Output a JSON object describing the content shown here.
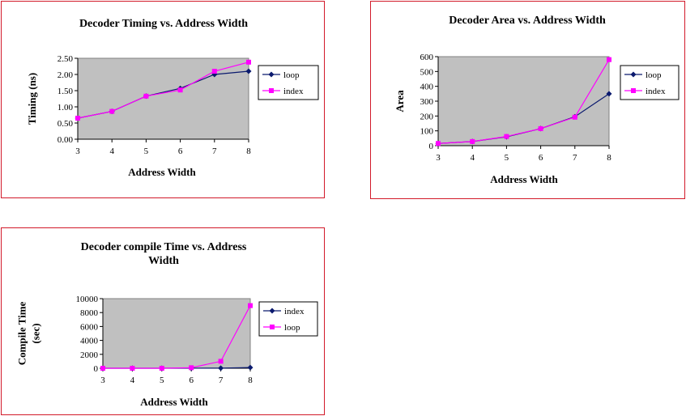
{
  "chart_data": [
    {
      "type": "line",
      "title_lines": [
        "Decoder Timing vs. Address Width"
      ],
      "xlabel": "Address Width",
      "ylabel_lines": [
        "Timing (ns)"
      ],
      "x": [
        3,
        4,
        5,
        6,
        7,
        8
      ],
      "ylim": [
        0,
        2.5
      ],
      "yticks": [
        "0.00",
        "0.50",
        "1.00",
        "1.50",
        "2.00",
        "2.50"
      ],
      "grid": false,
      "legend_position": "right",
      "series": [
        {
          "name": "loop",
          "color": "#0b1a6e",
          "marker": "diamond",
          "values": [
            0.65,
            0.86,
            1.33,
            1.57,
            2.0,
            2.1
          ]
        },
        {
          "name": "index",
          "color": "#ff00ff",
          "marker": "square",
          "values": [
            0.65,
            0.86,
            1.33,
            1.52,
            2.1,
            2.38
          ]
        }
      ]
    },
    {
      "type": "line",
      "title_lines": [
        "Decoder Area vs. Address Width"
      ],
      "xlabel": "Address Width",
      "ylabel_lines": [
        "Area"
      ],
      "x": [
        3,
        4,
        5,
        6,
        7,
        8
      ],
      "ylim": [
        0,
        600
      ],
      "yticks": [
        "0",
        "100",
        "200",
        "300",
        "400",
        "500",
        "600"
      ],
      "grid": false,
      "legend_position": "right",
      "series": [
        {
          "name": "loop",
          "color": "#0b1a6e",
          "marker": "diamond",
          "values": [
            15,
            28,
            60,
            115,
            195,
            350
          ]
        },
        {
          "name": "index",
          "color": "#ff00ff",
          "marker": "square",
          "values": [
            15,
            28,
            62,
            115,
            192,
            580
          ]
        }
      ]
    },
    {
      "type": "line",
      "title_lines": [
        "Decoder compile Time vs. Address",
        "Width"
      ],
      "xlabel": "Address Width",
      "ylabel_lines": [
        "Compile Time",
        "(sec)"
      ],
      "x": [
        3,
        4,
        5,
        6,
        7,
        8
      ],
      "ylim": [
        0,
        10000
      ],
      "yticks": [
        "0",
        "2000",
        "4000",
        "6000",
        "8000",
        "10000"
      ],
      "grid": false,
      "legend_position": "right",
      "series": [
        {
          "name": "index",
          "color": "#0b1a6e",
          "marker": "diamond",
          "values": [
            0,
            0,
            0,
            5,
            20,
            100
          ]
        },
        {
          "name": "loop",
          "color": "#ff00ff",
          "marker": "square",
          "values": [
            0,
            0,
            0,
            80,
            1000,
            9000
          ]
        }
      ]
    }
  ]
}
